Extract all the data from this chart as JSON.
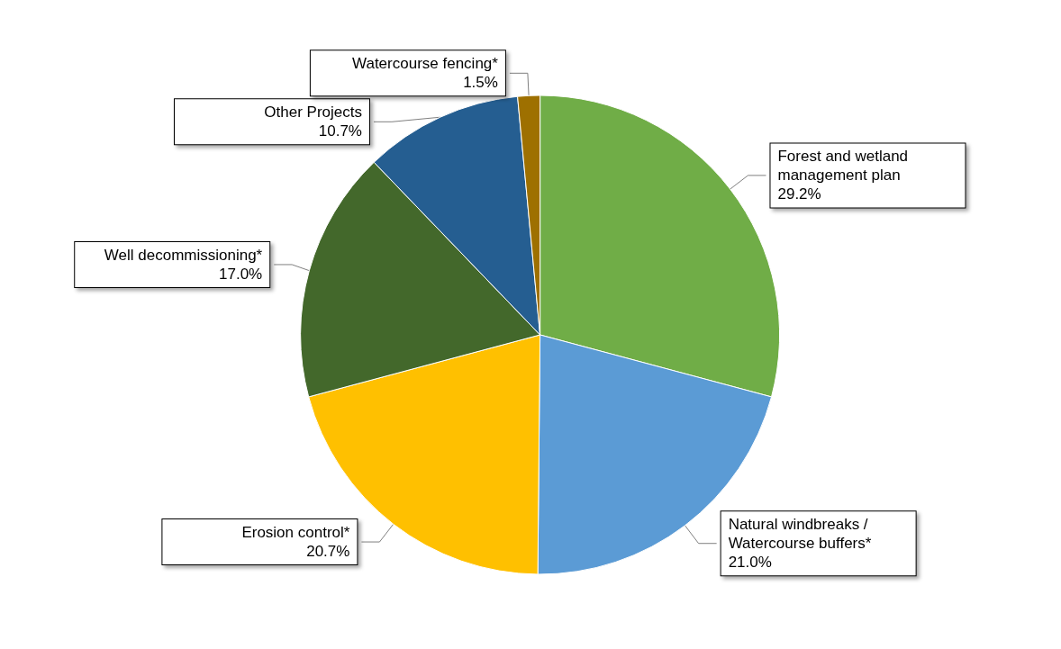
{
  "chart_data": {
    "type": "pie",
    "categories": [
      "Forest and wetland management plan",
      "Natural windbreaks / Watercourse buffers*",
      "Erosion control*",
      "Well decommissioning*",
      "Other Projects",
      "Watercourse fencing*"
    ],
    "values": [
      29.2,
      21.0,
      20.7,
      17.0,
      10.7,
      1.5
    ],
    "value_labels": [
      "29.2%",
      "21.0%",
      "20.7%",
      "17.0%",
      "10.7%",
      "1.5%"
    ],
    "colors": [
      "#70ad47",
      "#5b9bd5",
      "#ffc000",
      "#43682b",
      "#255e91",
      "#9e7000"
    ],
    "legend": false
  }
}
